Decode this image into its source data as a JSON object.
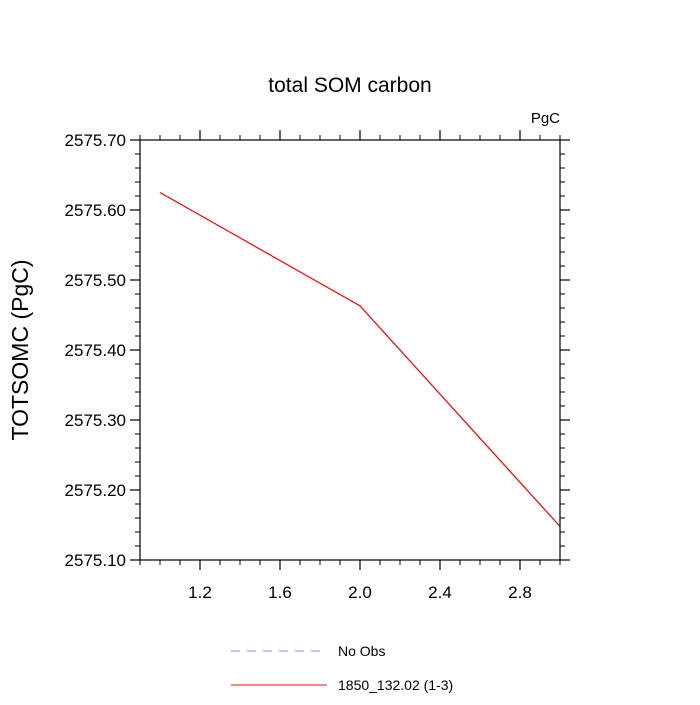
{
  "chart_data": {
    "type": "line",
    "title": "total SOM carbon",
    "units_label": "PgC",
    "xlabel": "",
    "ylabel": "TOTSOMC  (PgC)",
    "xlim": [
      0.9,
      3.0
    ],
    "ylim": [
      2575.1,
      2575.7
    ],
    "x_ticks": [
      1.2,
      1.6,
      2.0,
      2.4,
      2.8
    ],
    "x_tick_labels": [
      "1.2",
      "1.6",
      "2.0",
      "2.4",
      "2.8"
    ],
    "y_ticks": [
      2575.1,
      2575.2,
      2575.3,
      2575.4,
      2575.5,
      2575.6,
      2575.7
    ],
    "y_tick_labels": [
      "2575.10",
      "2575.20",
      "2575.30",
      "2575.40",
      "2575.50",
      "2575.60",
      "2575.70"
    ],
    "grid": false,
    "legend_position": "bottom-center",
    "series": [
      {
        "name": "No Obs",
        "color": "#8080ff",
        "dash": "dashed",
        "x": [],
        "y": []
      },
      {
        "name": "1850_132.02 (1-3)",
        "color": "#ff0000",
        "dash": "solid",
        "x": [
          1.0,
          2.0,
          3.0
        ],
        "y": [
          2575.625,
          2575.463,
          2575.148
        ]
      }
    ]
  }
}
